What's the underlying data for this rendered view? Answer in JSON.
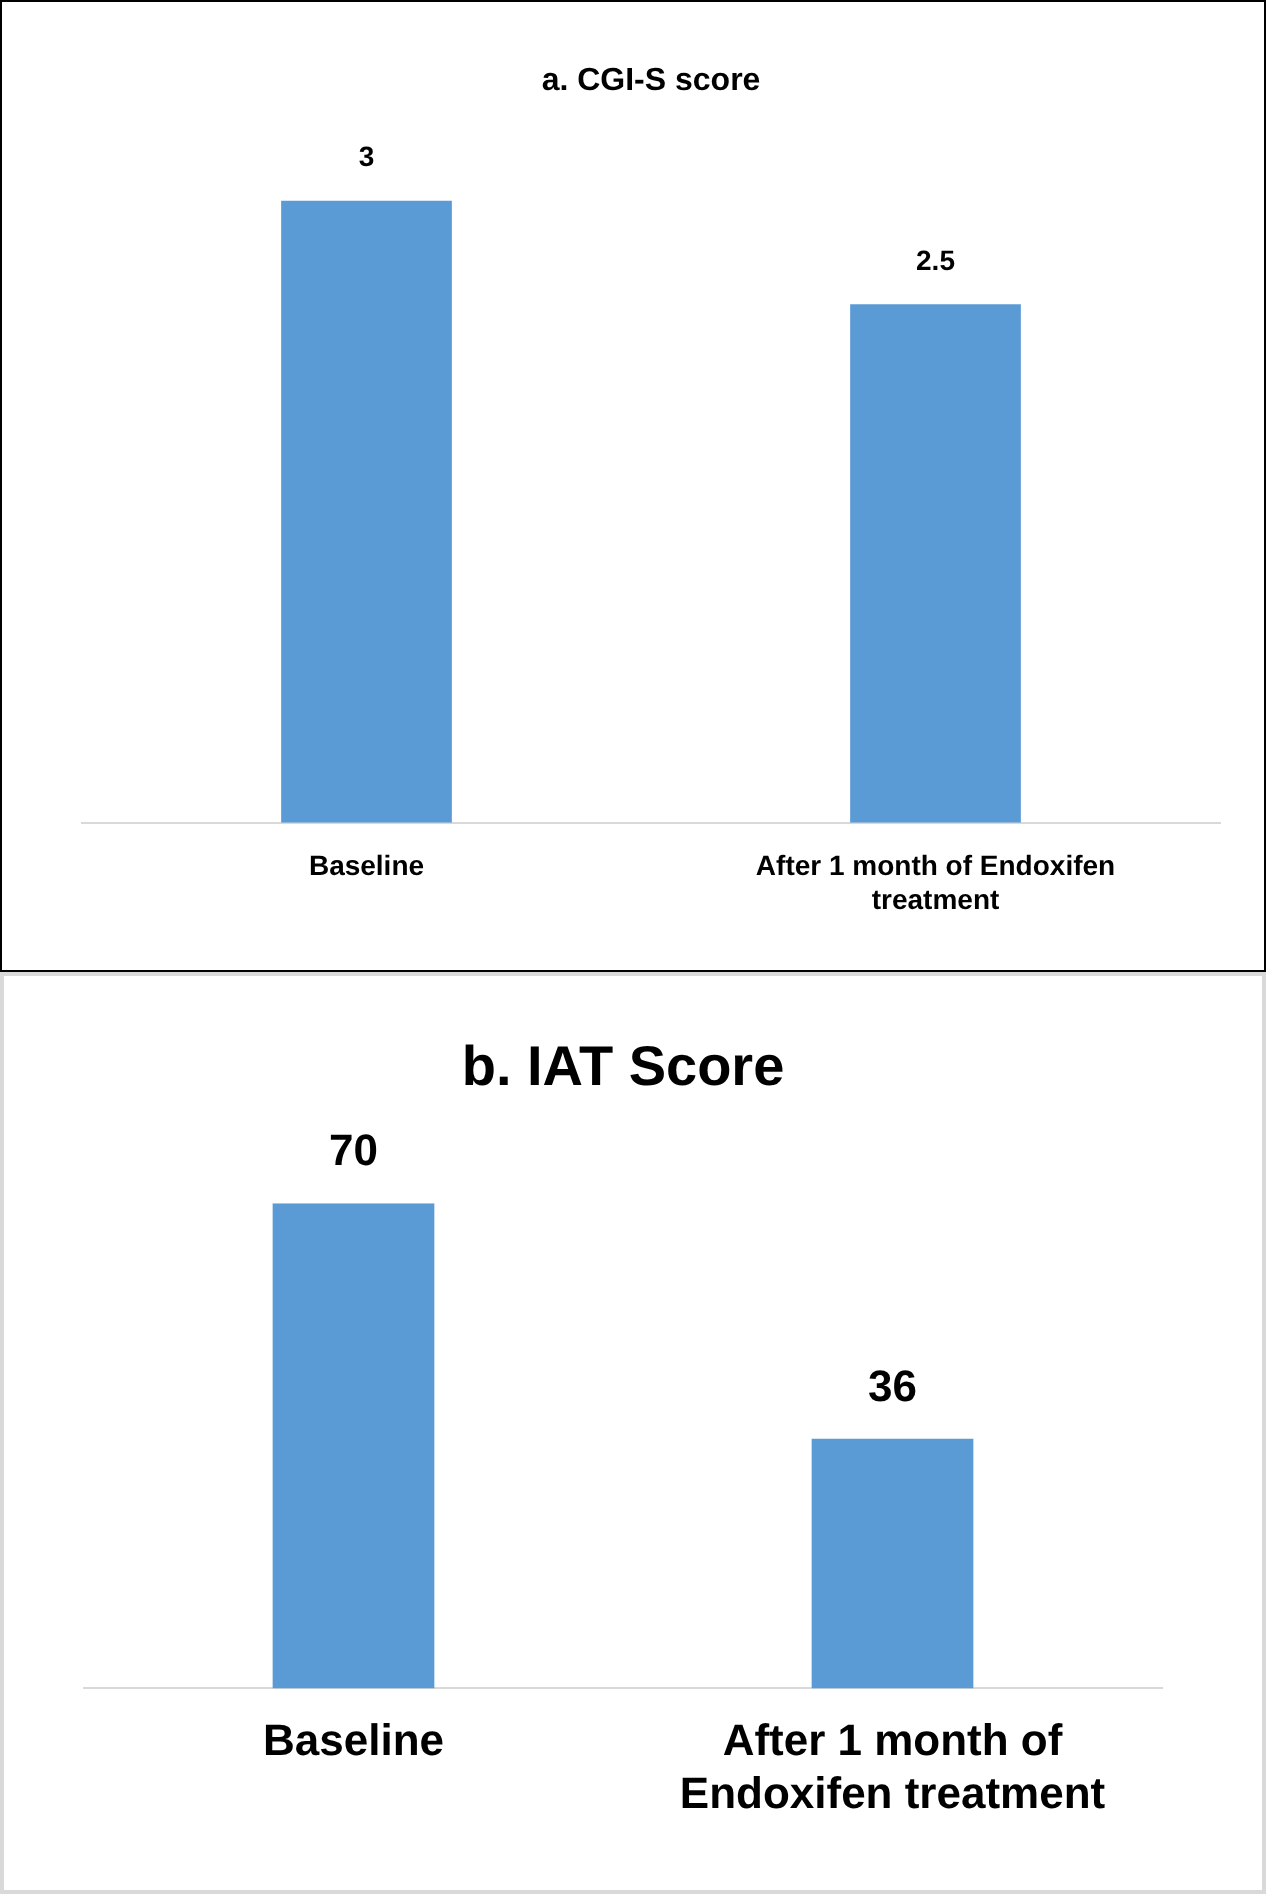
{
  "chart_data": [
    {
      "type": "bar",
      "title": "a. CGI-S score",
      "categories": [
        "Baseline",
        "After 1 month of Endoxifen treatment"
      ],
      "values": [
        3,
        2.5
      ],
      "color": "#5b9bd5",
      "data_labels": true,
      "tick_labels": "x",
      "grid": false,
      "legend": false
    },
    {
      "type": "bar",
      "title": "b. IAT Score",
      "categories": [
        "Baseline",
        "After 1 month of Endoxifen treatment"
      ],
      "values": [
        70,
        36
      ],
      "color": "#5b9bd5",
      "data_labels": true,
      "tick_labels": "x",
      "grid": false,
      "legend": false
    }
  ]
}
